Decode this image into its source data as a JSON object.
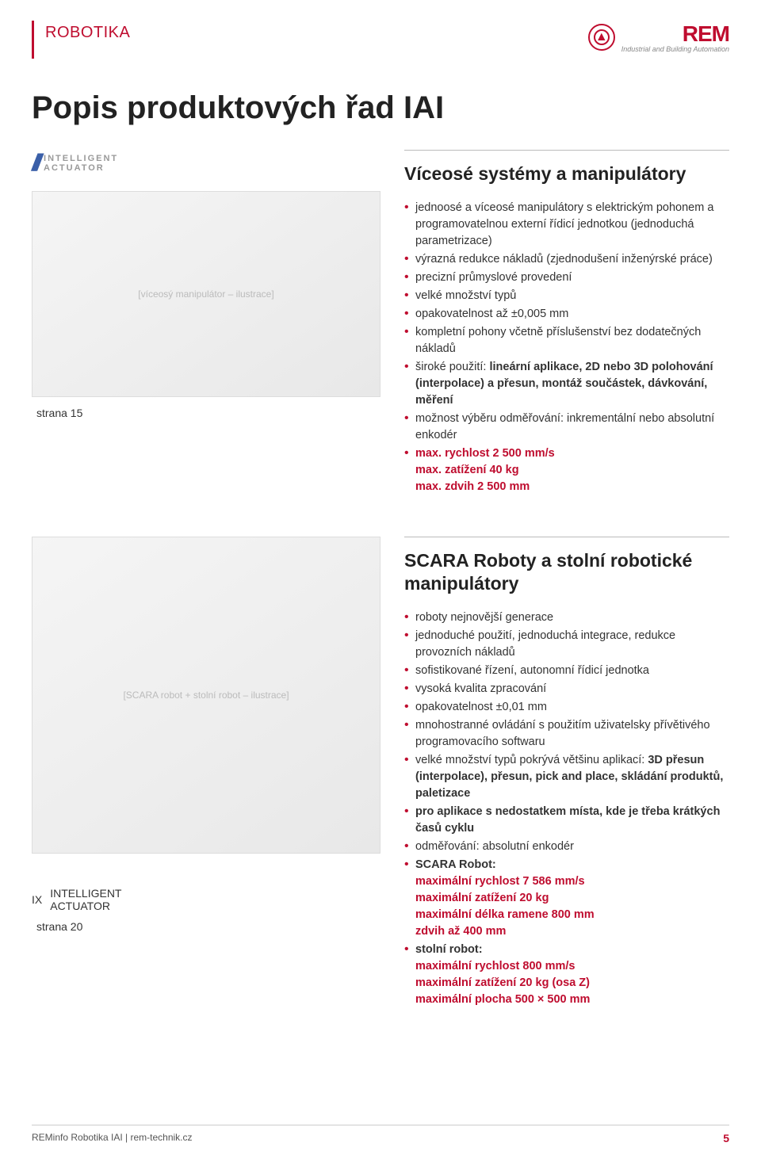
{
  "header": {
    "section_label": "ROBOTIKA",
    "brand_name": "REM",
    "brand_tagline": "Industrial and Building Automation"
  },
  "page_title": "Popis produktových řad IAI",
  "section1": {
    "brand_line1": "INTELLIGENT",
    "brand_line2": "ACTUATOR",
    "image_placeholder": "[víceosý manipulátor – ilustrace]",
    "page_ref": "strana 15",
    "heading": "Víceosé systémy a manipulátory",
    "bullets": [
      {
        "plain": "jednoosé a víceosé manipulátory s elektrickým pohonem a programovatelnou externí řídicí jednotkou (jednoduchá parametrizace)"
      },
      {
        "plain": "výrazná redukce nákladů (zjednodušení inženýrské práce)"
      },
      {
        "plain": "precizní průmyslové provedení"
      },
      {
        "plain": "velké množství typů"
      },
      {
        "plain": "opakovatelnost až ±0,005 mm"
      },
      {
        "plain": "kompletní pohony včetně příslušenství bez dodatečných nákladů"
      },
      {
        "pre": "široké použití: ",
        "bold": "lineární aplikace, 2D nebo 3D polohování (interpolace) a přesun, montáž součástek, dávkování, měření"
      },
      {
        "plain": "možnost výběru odměřování: inkrementální nebo absolutní enkodér"
      }
    ],
    "specs": [
      "max. rychlost 2 500 mm/s",
      "max. zatížení 40 kg",
      "max. zdvih 2 500 mm"
    ]
  },
  "section2": {
    "brand_mark": "IX",
    "brand_line1": "INTELLIGENT",
    "brand_line2": "ACTUATOR",
    "image_placeholder": "[SCARA robot + stolní robot – ilustrace]",
    "page_ref": "strana 20",
    "heading": "SCARA Roboty a stolní robotické manipulátory",
    "bullets": [
      {
        "plain": "roboty nejnovější generace"
      },
      {
        "plain": "jednoduché použití, jednoduchá integrace, redukce provozních nákladů"
      },
      {
        "plain": "sofistikované řízení, autonomní řídicí jednotka"
      },
      {
        "plain": "vysoká kvalita zpracování"
      },
      {
        "plain": "opakovatelnost ±0,01 mm"
      },
      {
        "plain": "mnohostranné ovládání s použitím uživatelsky přívětivého programovacího softwaru"
      },
      {
        "pre": "velké množství typů pokrývá většinu aplikací: ",
        "bold": "3D přesun (interpolace), přesun, pick and place, skládání produktů, paletizace"
      },
      {
        "bold_only": "pro aplikace s nedostatkem místa, kde je třeba krátkých časů cyklu"
      },
      {
        "plain": "odměřování: absolutní enkodér"
      },
      {
        "pre_bold": "SCARA Robot:",
        "red_lines": [
          "maximální rychlost 7 586 mm/s",
          "maximální zatížení 20 kg",
          "maximální délka ramene 800 mm",
          "zdvih až 400 mm"
        ]
      },
      {
        "pre_bold": "stolní robot:",
        "red_lines": [
          "maximální rychlost 800 mm/s",
          "maximální zatížení 20 kg (osa Z)",
          "maximální plocha 500 × 500 mm"
        ]
      }
    ]
  },
  "footer": {
    "left": "REMinfo Robotika IAI | rem-technik.cz",
    "page_number": "5"
  }
}
